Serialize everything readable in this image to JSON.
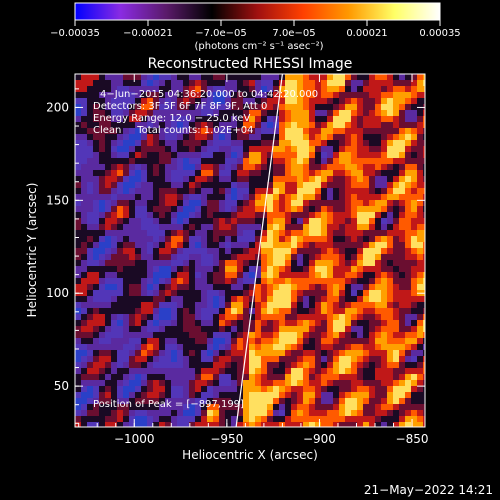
{
  "chart_data": {
    "type": "heatmap",
    "title": "Reconstructed RHESSI Image",
    "xlabel": "Heliocentric X (arcsec)",
    "ylabel": "Heliocentric Y (arcsec)",
    "xlim": [
      -1032,
      -843
    ],
    "ylim": [
      28,
      218
    ],
    "x_ticks": [
      -1000,
      -950,
      -900,
      -850
    ],
    "x_tick_labels": [
      "−1000",
      "−950",
      "−900",
      "−850"
    ],
    "y_ticks": [
      50,
      100,
      150,
      200
    ],
    "y_tick_labels": [
      "50",
      "100",
      "150",
      "200"
    ],
    "colorbar": {
      "range": [
        -0.00035,
        0.00035
      ],
      "tick_labels": [
        "−0.00035",
        "−0.00021",
        "−7.0e−05",
        "7.0e−05",
        "0.00021",
        "0.00035"
      ],
      "unit_label": "(photons cm⁻² s⁻¹ asec⁻²)",
      "colormap": [
        "#0000ff",
        "#8a2be2",
        "#5a1a6a",
        "#000000",
        "#a01010",
        "#ff4000",
        "#ff9900",
        "#ffff66",
        "#ffffff"
      ]
    },
    "annotations": [
      "4−Jun−2015 04:36:20.000 to 04:42:20.000",
      "Detectors: 3F 5F 6F 7F 8F 9F, Att 0",
      "Energy Range: 12.0 − 25.0 keV",
      "Clean     Total counts: 1.02E+04"
    ],
    "peak_label": "Position of Peak = [−897,199]",
    "limb_line": [
      [
        -945,
        28
      ],
      [
        -920,
        218
      ]
    ],
    "timestamp": "21−May−2022 14:21"
  }
}
